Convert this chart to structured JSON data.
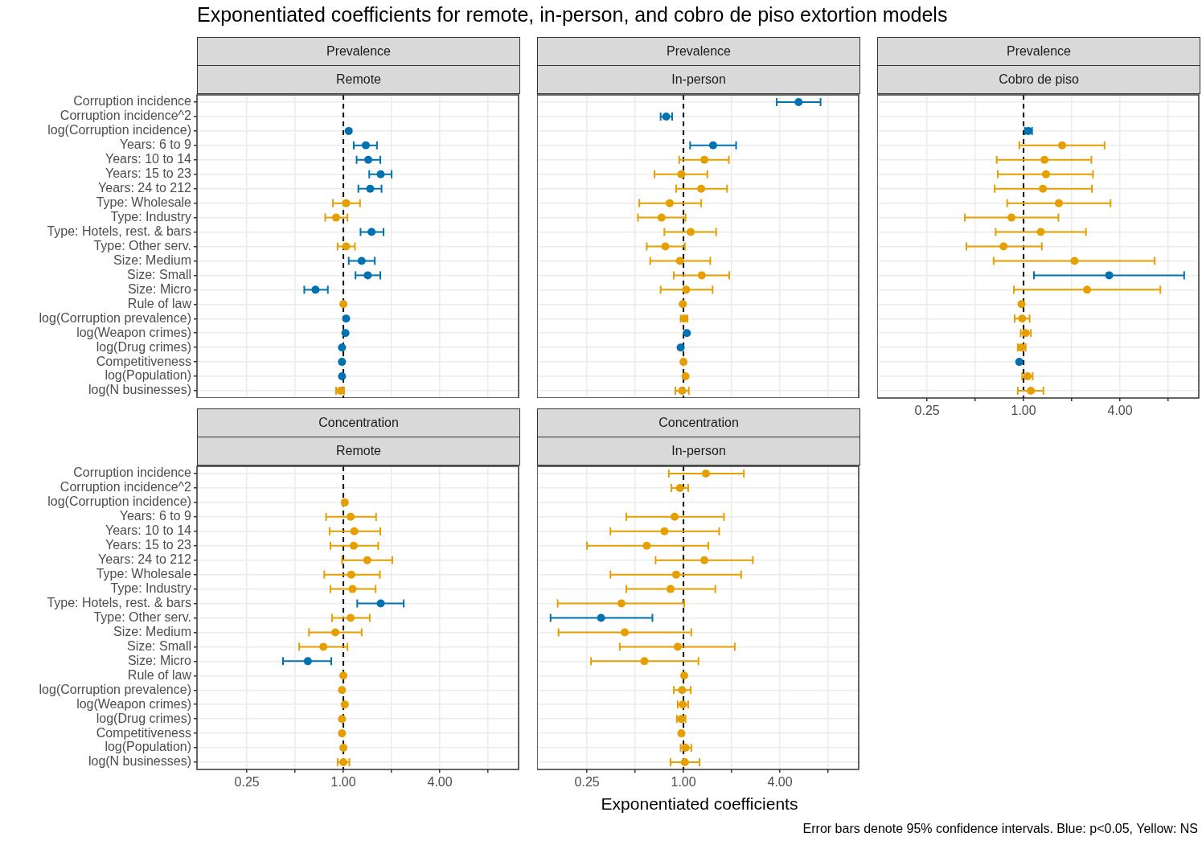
{
  "chart_data": [
    {
      "type": "scatter",
      "title": "Exponentiated coefficients for remote, in-person, and cobro de piso extortion models",
      "subtitle": "Prevalence",
      "annotations": [
        "Remote"
      ],
      "orientation": "horizontal",
      "log": "x",
      "grid": true,
      "marker": "circle",
      "tick_labels": "y",
      "categories": [
        "Corruption incidence",
        "Corruption incidence^2",
        "log(Corruption incidence)",
        "Years: 6 to 9",
        "Years: 10 to 14",
        "Years: 15 to 23",
        "Years: 24 to 212",
        "Type: Wholesale",
        "Type: Industry",
        "Type: Hotels, rest. & bars",
        "Type: Other serv.",
        "Size: Medium",
        "Size: Small",
        "Size: Micro",
        "Rule of law",
        "log(Corruption prevalence)",
        "log(Weapon crimes)",
        "log(Drug crimes)",
        "Competitiveness",
        "log(Population)",
        "log(N businesses)"
      ],
      "values": [
        null,
        null,
        1.08,
        1.38,
        1.43,
        1.71,
        1.47,
        1.04,
        0.9,
        1.5,
        1.04,
        1.3,
        1.42,
        0.67,
        1.0,
        1.04,
        1.03,
        0.98,
        0.98,
        0.98,
        0.96
      ],
      "errors": [
        null,
        null,
        null,
        [
          1.16,
          1.62
        ],
        [
          1.21,
          1.7
        ],
        [
          1.45,
          2.0
        ],
        [
          1.24,
          1.73
        ],
        [
          0.86,
          1.27
        ],
        [
          0.77,
          1.06
        ],
        [
          1.28,
          1.78
        ],
        [
          0.92,
          1.18
        ],
        [
          1.08,
          1.57
        ],
        [
          1.19,
          1.7
        ],
        [
          0.57,
          0.8
        ],
        null,
        null,
        null,
        null,
        null,
        null,
        [
          0.9,
          1.01
        ]
      ],
      "colors": [
        "#0072b2",
        "#0072b2",
        "#0072b2",
        "#0072b2",
        "#0072b2",
        "#0072b2",
        "#0072b2",
        "#e69f00",
        "#e69f00",
        "#0072b2",
        "#e69f00",
        "#0072b2",
        "#0072b2",
        "#0072b2",
        "#e69f00",
        "#0072b2",
        "#0072b2",
        "#0072b2",
        "#0072b2",
        "#0072b2",
        "#e69f00"
      ],
      "xlim": [
        0.122,
        12.4
      ],
      "xticks": [
        {
          "value": 0.25,
          "label": null
        },
        {
          "value": 0.5,
          "label": null
        },
        {
          "value": 1,
          "label": null
        },
        {
          "value": 2,
          "label": null
        },
        {
          "value": 4,
          "label": null
        },
        {
          "value": 8,
          "label": null
        }
      ],
      "ref_lines": [
        {
          "axis": "x",
          "value": 1,
          "color": "#000000",
          "line_style": "dashed"
        }
      ]
    },
    {
      "type": "scatter",
      "subtitle": "Prevalence",
      "annotations": [
        "In-person"
      ],
      "orientation": "horizontal",
      "log": "x",
      "grid": true,
      "marker": "circle",
      "tick_labels": false,
      "categories": [
        null,
        null,
        null,
        null,
        null,
        null,
        null,
        null,
        null,
        null,
        null,
        null,
        null,
        null,
        null,
        null,
        null,
        null,
        null,
        null,
        null
      ],
      "values": [
        5.23,
        0.78,
        null,
        1.53,
        1.35,
        0.97,
        1.29,
        0.82,
        0.73,
        1.11,
        0.77,
        0.95,
        1.3,
        1.04,
        0.99,
        1.01,
        1.05,
        0.96,
        1.0,
        1.03,
        0.98
      ],
      "errors": [
        [
          3.82,
          7.17
        ],
        [
          0.72,
          0.85
        ],
        null,
        [
          1.1,
          2.13
        ],
        [
          0.94,
          1.92
        ],
        [
          0.66,
          1.41
        ],
        [
          0.9,
          1.87
        ],
        [
          0.53,
          1.29
        ],
        [
          0.52,
          1.03
        ],
        [
          0.76,
          1.6
        ],
        [
          0.59,
          1.02
        ],
        [
          0.62,
          1.47
        ],
        [
          0.87,
          1.93
        ],
        [
          0.72,
          1.52
        ],
        null,
        [
          0.96,
          1.06
        ],
        null,
        null,
        null,
        null,
        [
          0.89,
          1.08
        ]
      ],
      "colors": [
        "#0072b2",
        "#0072b2",
        "#0072b2",
        "#0072b2",
        "#e69f00",
        "#e69f00",
        "#e69f00",
        "#e69f00",
        "#e69f00",
        "#e69f00",
        "#e69f00",
        "#e69f00",
        "#e69f00",
        "#e69f00",
        "#e69f00",
        "#e69f00",
        "#0072b2",
        "#0072b2",
        "#e69f00",
        "#e69f00",
        "#e69f00"
      ],
      "xlim": [
        0.122,
        12.4
      ],
      "xticks": [
        {
          "value": 0.25,
          "label": null
        },
        {
          "value": 0.5,
          "label": null
        },
        {
          "value": 1,
          "label": null
        },
        {
          "value": 2,
          "label": null
        },
        {
          "value": 4,
          "label": null
        },
        {
          "value": 8,
          "label": null
        }
      ],
      "ref_lines": [
        {
          "axis": "x",
          "value": 1,
          "color": "#000000",
          "line_style": "dashed"
        }
      ]
    },
    {
      "type": "scatter",
      "subtitle": "Prevalence",
      "annotations": [
        "Cobro de piso"
      ],
      "orientation": "horizontal",
      "log": "x",
      "grid": true,
      "marker": "circle",
      "tick_labels": "x",
      "categories": [
        null,
        null,
        null,
        null,
        null,
        null,
        null,
        null,
        null,
        null,
        null,
        null,
        null,
        null,
        null,
        null,
        null,
        null,
        null,
        null,
        null
      ],
      "values": [
        null,
        null,
        1.07,
        1.74,
        1.35,
        1.38,
        1.32,
        1.66,
        0.84,
        1.28,
        0.75,
        2.08,
        3.42,
        2.49,
        0.97,
        0.98,
        1.03,
        0.97,
        0.94,
        1.06,
        1.11
      ],
      "errors": [
        null,
        null,
        [
          1.02,
          1.13
        ],
        [
          0.94,
          3.2
        ],
        [
          0.68,
          2.65
        ],
        [
          0.69,
          2.71
        ],
        [
          0.66,
          2.67
        ],
        [
          0.79,
          3.49
        ],
        [
          0.43,
          1.65
        ],
        [
          0.67,
          2.45
        ],
        [
          0.44,
          1.3
        ],
        [
          0.65,
          6.58
        ],
        [
          1.16,
          10.05
        ],
        [
          0.87,
          7.14
        ],
        null,
        [
          0.88,
          1.09
        ],
        [
          0.96,
          1.11
        ],
        [
          0.92,
          1.03
        ],
        null,
        [
          0.98,
          1.14
        ],
        [
          0.92,
          1.33
        ]
      ],
      "colors": [
        "#0072b2",
        "#0072b2",
        "#0072b2",
        "#e69f00",
        "#e69f00",
        "#e69f00",
        "#e69f00",
        "#e69f00",
        "#e69f00",
        "#e69f00",
        "#e69f00",
        "#e69f00",
        "#0072b2",
        "#e69f00",
        "#e69f00",
        "#e69f00",
        "#e69f00",
        "#e69f00",
        "#0072b2",
        "#e69f00",
        "#e69f00"
      ],
      "xlim": [
        0.122,
        12.4
      ],
      "xticks": [
        {
          "value": 0.25,
          "label": "0.25"
        },
        {
          "value": 0.5,
          "label": null
        },
        {
          "value": 1,
          "label": "1.00"
        },
        {
          "value": 2,
          "label": null
        },
        {
          "value": 4,
          "label": "4.00"
        },
        {
          "value": 8,
          "label": null
        }
      ],
      "ref_lines": [
        {
          "axis": "x",
          "value": 1,
          "color": "#000000",
          "line_style": "dashed"
        }
      ]
    },
    {
      "type": "scatter",
      "subtitle": "Concentration",
      "annotations": [
        "Remote"
      ],
      "orientation": "horizontal",
      "log": "x",
      "grid": true,
      "marker": "circle",
      "categories": [
        "Corruption incidence",
        "Corruption incidence^2",
        "log(Corruption incidence)",
        "Years: 6 to 9",
        "Years: 10 to 14",
        "Years: 15 to 23",
        "Years: 24 to 212",
        "Type: Wholesale",
        "Type: Industry",
        "Type: Hotels, rest. & bars",
        "Type: Other serv.",
        "Size: Medium",
        "Size: Small",
        "Size: Micro",
        "Rule of law",
        "log(Corruption prevalence)",
        "log(Weapon crimes)",
        "log(Drug crimes)",
        "Competitiveness",
        "log(Population)",
        "log(N businesses)"
      ],
      "values": [
        null,
        null,
        1.02,
        1.11,
        1.17,
        1.16,
        1.41,
        1.12,
        1.14,
        1.71,
        1.11,
        0.89,
        0.75,
        0.6,
        1.0,
        0.98,
        1.02,
        0.98,
        0.98,
        1.0,
        1.0
      ],
      "errors": [
        null,
        null,
        null,
        [
          0.78,
          1.6
        ],
        [
          0.82,
          1.7
        ],
        [
          0.83,
          1.65
        ],
        [
          0.98,
          2.02
        ],
        [
          0.76,
          1.69
        ],
        [
          0.83,
          1.59
        ],
        [
          1.22,
          2.38
        ],
        [
          0.85,
          1.46
        ],
        [
          0.61,
          1.3
        ],
        [
          0.53,
          1.06
        ],
        [
          0.42,
          0.84
        ],
        null,
        null,
        null,
        null,
        null,
        null,
        [
          0.92,
          1.09
        ]
      ],
      "colors": [
        "#e69f00",
        "#e69f00",
        "#e69f00",
        "#e69f00",
        "#e69f00",
        "#e69f00",
        "#e69f00",
        "#e69f00",
        "#e69f00",
        "#0072b2",
        "#e69f00",
        "#e69f00",
        "#e69f00",
        "#0072b2",
        "#e69f00",
        "#e69f00",
        "#e69f00",
        "#e69f00",
        "#e69f00",
        "#e69f00",
        "#e69f00"
      ],
      "xlim": [
        0.122,
        12.4
      ],
      "xticks": [
        {
          "value": 0.25,
          "label": "0.25"
        },
        {
          "value": 0.5,
          "label": null
        },
        {
          "value": 1,
          "label": "1.00"
        },
        {
          "value": 2,
          "label": null
        },
        {
          "value": 4,
          "label": "4.00"
        },
        {
          "value": 8,
          "label": null
        }
      ],
      "ref_lines": [
        {
          "axis": "x",
          "value": 1,
          "color": "#000000",
          "line_style": "dashed"
        }
      ]
    },
    {
      "type": "scatter",
      "subtitle": "Concentration",
      "annotations": [
        "In-person",
        "Error bars denote 95% confidence intervals. Blue: p<0.05, Yellow: NS"
      ],
      "xlabel": "Exponentiated coefficients",
      "orientation": "horizontal",
      "log": "x",
      "grid": true,
      "marker": "circle",
      "tick_labels": "x",
      "categories": [
        null,
        null,
        null,
        null,
        null,
        null,
        null,
        null,
        null,
        null,
        null,
        null,
        null,
        null,
        null,
        null,
        null,
        null,
        null,
        null,
        null
      ],
      "values": [
        1.38,
        0.95,
        null,
        0.88,
        0.76,
        0.59,
        1.35,
        0.9,
        0.83,
        0.41,
        0.306,
        0.43,
        0.92,
        0.57,
        1.01,
        0.98,
        0.99,
        0.97,
        0.97,
        1.03,
        1.02
      ],
      "errors": [
        [
          0.81,
          2.38
        ],
        [
          0.84,
          1.07
        ],
        null,
        [
          0.44,
          1.79
        ],
        [
          0.35,
          1.67
        ],
        [
          0.25,
          1.43
        ],
        [
          0.67,
          2.71
        ],
        [
          0.35,
          2.29
        ],
        [
          0.44,
          1.58
        ],
        [
          0.164,
          1.01
        ],
        [
          0.148,
          0.64
        ],
        [
          0.166,
          1.12
        ],
        [
          0.4,
          2.09
        ],
        [
          0.265,
          1.24
        ],
        null,
        [
          0.87,
          1.11
        ],
        [
          0.92,
          1.07
        ],
        [
          0.91,
          1.03
        ],
        null,
        [
          0.96,
          1.12
        ],
        [
          0.83,
          1.26
        ]
      ],
      "colors": [
        "#e69f00",
        "#e69f00",
        "#e69f00",
        "#e69f00",
        "#e69f00",
        "#e69f00",
        "#e69f00",
        "#e69f00",
        "#e69f00",
        "#e69f00",
        "#0072b2",
        "#e69f00",
        "#e69f00",
        "#e69f00",
        "#e69f00",
        "#e69f00",
        "#e69f00",
        "#e69f00",
        "#e69f00",
        "#e69f00",
        "#e69f00"
      ],
      "xlim": [
        0.122,
        12.4
      ],
      "xticks": [
        {
          "value": 0.25,
          "label": "0.25"
        },
        {
          "value": 0.5,
          "label": null
        },
        {
          "value": 1,
          "label": "1.00"
        },
        {
          "value": 2,
          "label": null
        },
        {
          "value": 4,
          "label": "4.00"
        },
        {
          "value": 8,
          "label": null
        }
      ],
      "ref_lines": [
        {
          "axis": "x",
          "value": 1,
          "color": "#000000",
          "line_style": "dashed"
        }
      ]
    }
  ]
}
